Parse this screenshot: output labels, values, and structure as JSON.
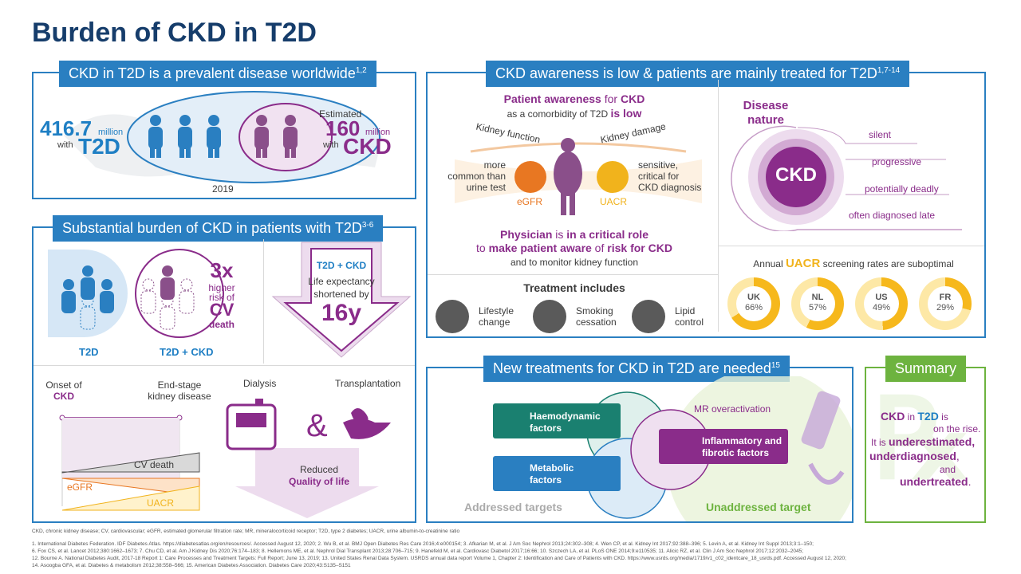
{
  "title": "Burden of CKD in T2D",
  "p1": {
    "header": "CKD in T2D is a prevalent disease worldwide",
    "sup": "1,2",
    "left_num": "416.7",
    "left_unit": "million",
    "left_with": "with",
    "left_lab": "T2D",
    "est": "Estimated",
    "right_num": "160",
    "right_unit": "million",
    "right_with": "with",
    "right_lab": "CKD",
    "year": "2019"
  },
  "p2": {
    "header": "Substantial burden of CKD in patients with T2D",
    "sup": "3-6",
    "t2d": "T2D",
    "t2dckd": "T2D + CKD",
    "three_x": "3x",
    "higher": "higher",
    "risk_of": "risk of",
    "cv": "CV",
    "death": "death",
    "arrow_title": "T2D + CKD",
    "arrow_l1": "Life expectancy",
    "arrow_l2": "shortened by",
    "arrow_big": "16y",
    "onset_l1": "Onset of",
    "onset_l2": "CKD",
    "esk_l1": "End-stage",
    "esk_l2": "kidney disease",
    "dialysis": "Dialysis",
    "transplant": "Transplantation",
    "cv_death": "CV death",
    "egfr": "eGFR",
    "uacr": "UACR",
    "reduced": "Reduced",
    "qol": "Quality of life",
    "amp": "&"
  },
  "p3": {
    "header": "CKD awareness is low & patients are mainly treated for T2D",
    "sup": "1,7-14",
    "aw_l1a": "Patient awareness",
    "aw_l1b": " for ",
    "aw_l1c": "CKD",
    "aw_l2a": "as a comorbidity of T2D ",
    "aw_l2b": "is low",
    "kf": "Kidney function",
    "kd": "Kidney damage",
    "more1": "more",
    "more2": "common than",
    "more3": "urine test",
    "sens1": "sensitive,",
    "sens2": "critical for",
    "sens3": "CKD diagnosis",
    "egfr": "eGFR",
    "uacr": "UACR",
    "ph_a": "Physician",
    "ph_b": " is ",
    "ph_c": "in a critical role",
    "ph2_a": "to ",
    "ph2_b": "make patient aware",
    "ph2_c": " of ",
    "ph2_d": "risk for CKD",
    "ph3": "and to monitor kidney function",
    "disease1": "Disease",
    "disease2": "nature",
    "ckd": "CKD",
    "n1": "silent",
    "n2": "progressive",
    "n3": "potentially deadly",
    "n4": "often diagnosed late",
    "treat": "Treatment includes",
    "t1a": "Lifestyle",
    "t1b": "change",
    "t2a": "Smoking",
    "t2b": "cessation",
    "t3a": "Lipid",
    "t3b": "control",
    "scr_a": "Annual ",
    "scr_b": "UACR",
    "scr_c": " screening rates are suboptimal",
    "donuts": [
      {
        "c": "UK",
        "v": "66%",
        "pct": 66
      },
      {
        "c": "NL",
        "v": "57%",
        "pct": 57
      },
      {
        "c": "US",
        "v": "49%",
        "pct": 49
      },
      {
        "c": "FR",
        "v": "29%",
        "pct": 29
      }
    ],
    "colors": {
      "yellow": "#f6b81c",
      "pale": "#fde8a6"
    }
  },
  "p4": {
    "header": "New treatments for CKD in T2D are needed",
    "sup": "15",
    "hemo1": "Haemodynamic",
    "hemo2": "factors",
    "meta1": "Metabolic",
    "meta2": "factors",
    "mr": "MR overactivation",
    "inf1": "Inflammatory and",
    "inf2": "fibrotic factors",
    "addr": "Addressed targets",
    "unaddr": "Unaddressed target"
  },
  "sum": {
    "header": "Summary",
    "l1a": "CKD",
    "l1b": " in ",
    "l1c": "T2D",
    "l1d": " is",
    "l2": "on the rise.",
    "l3a": "It is ",
    "l3b": "underestimated,",
    "l4a": "underdiagnosed",
    "l4b": ",",
    "l5": "and",
    "l6a": "undertreated",
    "l6b": "."
  },
  "footnotes": [
    "CKD, chronic kidney disease; CV, cardiovascular; eGFR, estimated glomerular filtration rate; MR, mineralocorticoid receptor; T2D, type 2 diabetes; UACR, urine albumin-to-creatinine ratio",
    "1. International Diabetes Federation. IDF Diabetes Atlas. https://diabetesatlas.org/en/resources/. Accessed August 12, 2020; 2. Wu B, et al. BMJ Open Diabetes Res Care 2016;4:e000154; 3. Afkarian M, et al. J Am Soc Nephrol 2013;24:302–308; 4. Wen CP, et al. Kidney Int 2017;92:388–396; 5. Levin A, et al. Kidney Int Suppl 2013;3:1–150;",
    "6. Fox CS, et al. Lancet 2012;380:1662–1673; 7. Chu CD, et al. Am J Kidney Dis 2020;76:174–183; 8. Hellemons ME, et al. Nephrol Dial Transplant 2013;28:706–715; 9. Hanefeld M, et al. Cardiovasc Diabetol 2017;16:66; 10. Szczech LA, et al. PLoS ONE 2014;9:e110535; 11. Alicic RZ, et al. Clin J Am Soc Nephrol 2017;12:2032–2045;",
    "12. Bourne A. National Diabetes Audit, 2017-18 Report 1: Care Processes and Treatment Targets: Full Report; June 13, 2019; 13. United States Renal Data System. USRDS annual data report Volume 1, Chapter 2: Identification and Care of Patients with CKD. https://www.usrds.org/media/1719/v1_c02_identcare_18_usrds.pdf. Accessed August 12, 2020;",
    "14. Asoogba GFA, et al. Diabetes & metabolism 2012;38:558–566; 15. American Diabetes Association. Diabetes Care 2020;43:S135–S151"
  ]
}
